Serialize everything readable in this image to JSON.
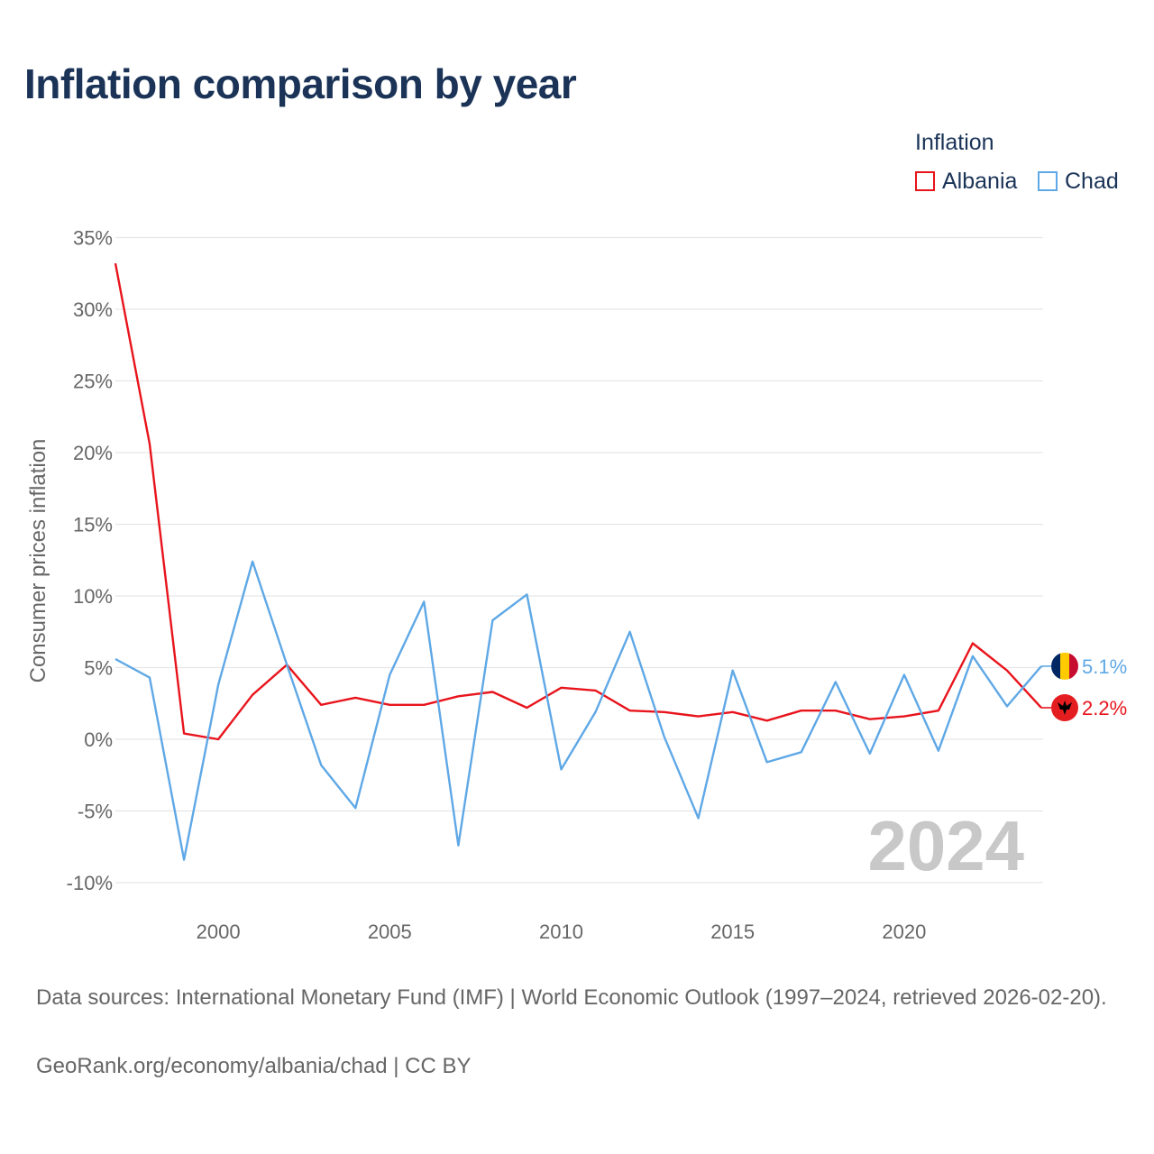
{
  "title": "Inflation comparison by year",
  "legend": {
    "title": "Inflation",
    "items": [
      {
        "name": "Albania",
        "color": "#e8141c"
      },
      {
        "name": "Chad",
        "color": "#5fa8e6"
      }
    ]
  },
  "footer": {
    "source": "Data sources: International Monetary Fund (IMF) | World Economic Outlook (1997–2024, retrieved 2026-02-20).",
    "attribution": "GeoRank.org/economy/albania/chad | CC BY"
  },
  "year_label": "2024",
  "chart_data": {
    "type": "line",
    "title": "Inflation comparison by year",
    "xlabel": "",
    "ylabel": "Consumer prices inflation",
    "x": [
      1997,
      1998,
      1999,
      2000,
      2001,
      2002,
      2003,
      2004,
      2005,
      2006,
      2007,
      2008,
      2009,
      2010,
      2011,
      2012,
      2013,
      2014,
      2015,
      2016,
      2017,
      2018,
      2019,
      2020,
      2021,
      2022,
      2023,
      2024
    ],
    "xlim": [
      1997,
      2024
    ],
    "ylim": [
      -12,
      35
    ],
    "x_ticks": [
      "2000",
      "2005",
      "2010",
      "2015",
      "2020"
    ],
    "x_tick_values": [
      2000,
      2005,
      2010,
      2015,
      2020
    ],
    "y_ticks": [
      "35%",
      "30%",
      "25%",
      "20%",
      "15%",
      "10%",
      "5%",
      "0%",
      "-5%",
      "-10%"
    ],
    "y_tick_values": [
      35,
      30,
      25,
      20,
      15,
      10,
      5,
      0,
      -5,
      -10
    ],
    "grid": true,
    "series": [
      {
        "name": "Albania",
        "color": "#e8141c",
        "values": [
          33.2,
          20.6,
          0.4,
          0.0,
          3.1,
          5.2,
          2.4,
          2.9,
          2.4,
          2.4,
          3.0,
          3.3,
          2.2,
          3.6,
          3.4,
          2.0,
          1.9,
          1.6,
          1.9,
          1.3,
          2.0,
          2.0,
          1.4,
          1.6,
          2.0,
          6.7,
          4.8,
          2.2
        ],
        "end_label": "2.2%"
      },
      {
        "name": "Chad",
        "color": "#5fa8e6",
        "values": [
          5.6,
          4.3,
          -8.4,
          3.8,
          12.4,
          5.2,
          -1.8,
          -4.8,
          4.5,
          9.6,
          -7.4,
          8.3,
          10.1,
          -2.1,
          1.9,
          7.5,
          0.2,
          -5.5,
          4.8,
          -1.6,
          -0.9,
          4.0,
          -1.0,
          4.5,
          -0.8,
          5.8,
          2.3,
          5.1
        ],
        "end_label": "5.1%"
      }
    ]
  }
}
